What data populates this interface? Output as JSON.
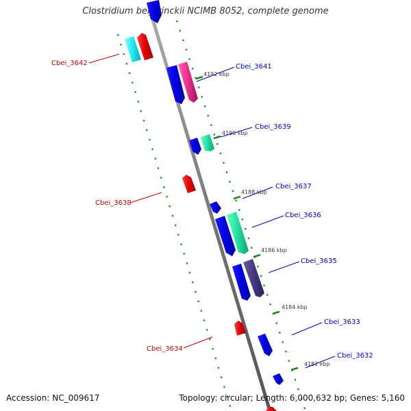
{
  "header": {
    "title": "Clostridium beijerinckii NCIMB 8052, complete genome"
  },
  "footer": {
    "accession": "Accession: NC_009617",
    "summary": "Topology: circular; Length: 6,000,632 bp; Genes: 5,160"
  },
  "colors": {
    "backbone": "#888888",
    "tick": "#1a8a1a",
    "forward_label": "#0000cc",
    "reverse_label": "#cc0000"
  },
  "kbp_labels": [
    {
      "label": "4192 kbp"
    },
    {
      "label": "4190 kbp"
    },
    {
      "label": "4188 kbp"
    },
    {
      "label": "4186 kbp"
    },
    {
      "label": "4184 kbp"
    },
    {
      "label": "4182 kbp"
    }
  ],
  "gene_labels": [
    {
      "label": "Cbei_3642",
      "strand": "reverse"
    },
    {
      "label": "Cbei_3641",
      "strand": "forward"
    },
    {
      "label": "Cbei_3639",
      "strand": "forward"
    },
    {
      "label": "Cbei_3637",
      "strand": "forward"
    },
    {
      "label": "Cbei_3638",
      "strand": "reverse"
    },
    {
      "label": "Cbei_3636",
      "strand": "forward"
    },
    {
      "label": "Cbei_3635",
      "strand": "forward"
    },
    {
      "label": "Cbei_3633",
      "strand": "forward"
    },
    {
      "label": "Cbei_3634",
      "strand": "reverse"
    },
    {
      "label": "Cbei_3632",
      "strand": "forward"
    }
  ]
}
